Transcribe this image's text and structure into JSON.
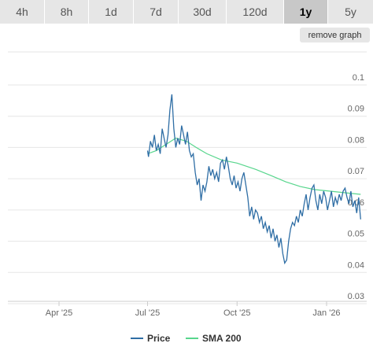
{
  "tabs": [
    {
      "label": "4h",
      "active": false
    },
    {
      "label": "8h",
      "active": false
    },
    {
      "label": "1d",
      "active": false
    },
    {
      "label": "7d",
      "active": false
    },
    {
      "label": "30d",
      "active": false
    },
    {
      "label": "120d",
      "active": false
    },
    {
      "label": "1y",
      "active": true
    },
    {
      "label": "5y",
      "active": false
    }
  ],
  "remove_graph_label": "remove graph",
  "colors": {
    "price": "#2f6ea5",
    "sma": "#58d68d",
    "grid": "#e6e6e6",
    "tab_bg": "#e6e6e6",
    "tab_active_bg": "#c8c8c8"
  },
  "chart_data": {
    "type": "line",
    "x_ticks": [
      "Apr '25",
      "Jul '25",
      "Oct '25",
      "Jan '26"
    ],
    "y_ticks": [
      0.1,
      0.09,
      0.08,
      0.07,
      0.06,
      0.05,
      0.04,
      0.03
    ],
    "ylim": [
      0.03,
      0.1
    ],
    "grid": "horizontal",
    "legend_position": "bottom-center",
    "series": [
      {
        "name": "Price",
        "color": "#2f6ea5",
        "points": [
          [
            "2025-07-01",
            0.079
          ],
          [
            "2025-07-02",
            0.077
          ],
          [
            "2025-07-04",
            0.082
          ],
          [
            "2025-07-06",
            0.08
          ],
          [
            "2025-07-08",
            0.084
          ],
          [
            "2025-07-10",
            0.079
          ],
          [
            "2025-07-12",
            0.081
          ],
          [
            "2025-07-14",
            0.078
          ],
          [
            "2025-07-16",
            0.086
          ],
          [
            "2025-07-18",
            0.083
          ],
          [
            "2025-07-20",
            0.08
          ],
          [
            "2025-07-22",
            0.084
          ],
          [
            "2025-07-24",
            0.092
          ],
          [
            "2025-07-26",
            0.097
          ],
          [
            "2025-07-28",
            0.086
          ],
          [
            "2025-07-30",
            0.08
          ],
          [
            "2025-08-01",
            0.083
          ],
          [
            "2025-08-03",
            0.081
          ],
          [
            "2025-08-05",
            0.087
          ],
          [
            "2025-08-07",
            0.084
          ],
          [
            "2025-08-09",
            0.081
          ],
          [
            "2025-08-11",
            0.085
          ],
          [
            "2025-08-13",
            0.079
          ],
          [
            "2025-08-15",
            0.077
          ],
          [
            "2025-08-17",
            0.078
          ],
          [
            "2025-08-19",
            0.072
          ],
          [
            "2025-08-21",
            0.068
          ],
          [
            "2025-08-23",
            0.07
          ],
          [
            "2025-08-25",
            0.063
          ],
          [
            "2025-08-27",
            0.068
          ],
          [
            "2025-08-29",
            0.066
          ],
          [
            "2025-08-31",
            0.069
          ],
          [
            "2025-09-02",
            0.074
          ],
          [
            "2025-09-04",
            0.071
          ],
          [
            "2025-09-06",
            0.073
          ],
          [
            "2025-09-08",
            0.07
          ],
          [
            "2025-09-10",
            0.072
          ],
          [
            "2025-09-12",
            0.069
          ],
          [
            "2025-09-14",
            0.075
          ],
          [
            "2025-09-16",
            0.076
          ],
          [
            "2025-09-18",
            0.073
          ],
          [
            "2025-09-20",
            0.077
          ],
          [
            "2025-09-22",
            0.074
          ],
          [
            "2025-09-24",
            0.07
          ],
          [
            "2025-09-26",
            0.068
          ],
          [
            "2025-09-28",
            0.071
          ],
          [
            "2025-09-30",
            0.067
          ],
          [
            "2025-10-02",
            0.069
          ],
          [
            "2025-10-04",
            0.066
          ],
          [
            "2025-10-06",
            0.07
          ],
          [
            "2025-10-08",
            0.072
          ],
          [
            "2025-10-10",
            0.068
          ],
          [
            "2025-10-12",
            0.064
          ],
          [
            "2025-10-14",
            0.058
          ],
          [
            "2025-10-16",
            0.061
          ],
          [
            "2025-10-18",
            0.057
          ],
          [
            "2025-10-20",
            0.06
          ],
          [
            "2025-10-22",
            0.059
          ],
          [
            "2025-10-24",
            0.056
          ],
          [
            "2025-10-26",
            0.058
          ],
          [
            "2025-10-28",
            0.054
          ],
          [
            "2025-10-30",
            0.056
          ],
          [
            "2025-11-01",
            0.053
          ],
          [
            "2025-11-03",
            0.055
          ],
          [
            "2025-11-05",
            0.051
          ],
          [
            "2025-11-07",
            0.054
          ],
          [
            "2025-11-09",
            0.05
          ],
          [
            "2025-11-11",
            0.052
          ],
          [
            "2025-11-13",
            0.048
          ],
          [
            "2025-11-15",
            0.051
          ],
          [
            "2025-11-17",
            0.046
          ],
          [
            "2025-11-19",
            0.043
          ],
          [
            "2025-11-21",
            0.044
          ],
          [
            "2025-11-23",
            0.05
          ],
          [
            "2025-11-25",
            0.054
          ],
          [
            "2025-11-27",
            0.056
          ],
          [
            "2025-11-29",
            0.055
          ],
          [
            "2025-12-01",
            0.058
          ],
          [
            "2025-12-03",
            0.056
          ],
          [
            "2025-12-05",
            0.06
          ],
          [
            "2025-12-07",
            0.058
          ],
          [
            "2025-12-09",
            0.062
          ],
          [
            "2025-12-11",
            0.065
          ],
          [
            "2025-12-13",
            0.06
          ],
          [
            "2025-12-15",
            0.064
          ],
          [
            "2025-12-17",
            0.067
          ],
          [
            "2025-12-19",
            0.068
          ],
          [
            "2025-12-21",
            0.063
          ],
          [
            "2025-12-23",
            0.06
          ],
          [
            "2025-12-25",
            0.065
          ],
          [
            "2025-12-27",
            0.062
          ],
          [
            "2025-12-29",
            0.066
          ],
          [
            "2025-12-31",
            0.064
          ],
          [
            "2026-01-02",
            0.06
          ],
          [
            "2026-01-04",
            0.063
          ],
          [
            "2026-01-06",
            0.066
          ],
          [
            "2026-01-08",
            0.061
          ],
          [
            "2026-01-10",
            0.064
          ],
          [
            "2026-01-12",
            0.062
          ],
          [
            "2026-01-14",
            0.065
          ],
          [
            "2026-01-16",
            0.063
          ],
          [
            "2026-01-18",
            0.066
          ],
          [
            "2026-01-20",
            0.067
          ],
          [
            "2026-01-22",
            0.064
          ],
          [
            "2026-01-24",
            0.062
          ],
          [
            "2026-01-26",
            0.066
          ],
          [
            "2026-01-28",
            0.061
          ],
          [
            "2026-01-30",
            0.063
          ],
          [
            "2026-02-01",
            0.059
          ],
          [
            "2026-02-03",
            0.064
          ],
          [
            "2026-02-05",
            0.057
          ]
        ]
      },
      {
        "name": "SMA 200",
        "color": "#58d68d",
        "points": [
          [
            "2025-07-01",
            0.078
          ],
          [
            "2025-07-10",
            0.079
          ],
          [
            "2025-07-20",
            0.081
          ],
          [
            "2025-07-30",
            0.083
          ],
          [
            "2025-08-10",
            0.082
          ],
          [
            "2025-08-20",
            0.08
          ],
          [
            "2025-08-31",
            0.078
          ],
          [
            "2025-09-15",
            0.076
          ],
          [
            "2025-10-01",
            0.075
          ],
          [
            "2025-10-20",
            0.073
          ],
          [
            "2025-11-05",
            0.071
          ],
          [
            "2025-11-20",
            0.069
          ],
          [
            "2025-12-05",
            0.0675
          ],
          [
            "2025-12-20",
            0.0665
          ],
          [
            "2026-01-05",
            0.066
          ],
          [
            "2026-01-20",
            0.0655
          ],
          [
            "2026-02-05",
            0.065
          ]
        ]
      }
    ]
  }
}
